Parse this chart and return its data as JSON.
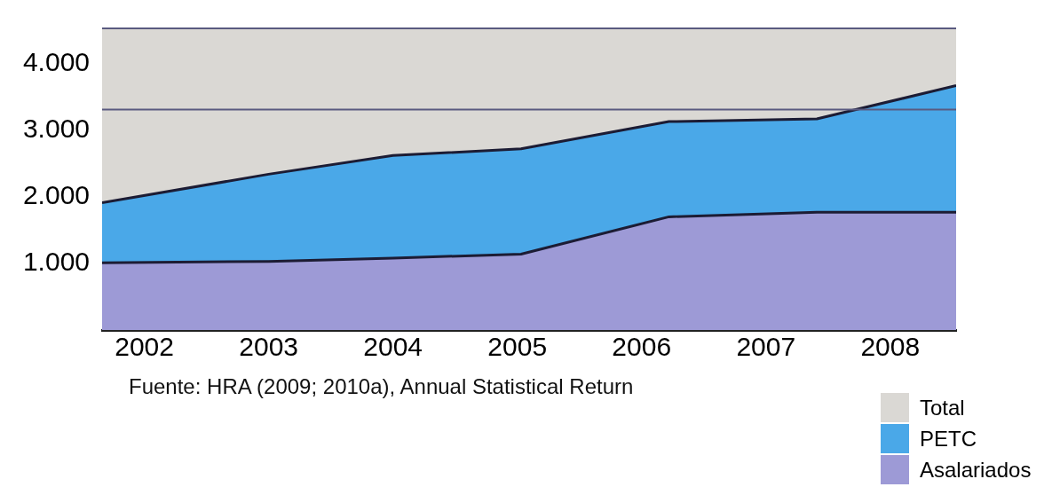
{
  "chart_data": {
    "type": "area",
    "stacked": true,
    "x": [
      2001.66,
      2003,
      2004,
      2005.03,
      2006.22,
      2007.41,
      2008.53
    ],
    "xlim": [
      2001.66,
      2008.53
    ],
    "xticks": [
      2002,
      2003,
      2004,
      2005,
      2006,
      2007,
      2008
    ],
    "ylim": [
      0,
      4530
    ],
    "yticks": [
      {
        "value": 1000,
        "label": "1.000"
      },
      {
        "value": 2000,
        "label": "2.000"
      },
      {
        "value": 3000,
        "label": "3.000"
      },
      {
        "value": 4000,
        "label": "4.000"
      }
    ],
    "series": [
      {
        "name": "Asalariados",
        "color": "#9d9ad6",
        "values": [
          1010,
          1030,
          1080,
          1140,
          1700,
          1770,
          1770
        ]
      },
      {
        "name": "PETC",
        "color": "#4aa8e8",
        "values": [
          900,
          1310,
          1540,
          1580,
          1430,
          1400,
          1900
        ]
      },
      {
        "name": "Total",
        "color": "#dad8d4",
        "values": [
          2620,
          2190,
          1910,
          1810,
          1400,
          1360,
          860
        ]
      }
    ],
    "ref_lines": [
      {
        "axis": "y",
        "value": 3310,
        "color": "#5a5a80"
      }
    ],
    "legend": "bottom right",
    "annotations": [
      "Fuente: HRA (2009; 2010a), Annual Statistical Return"
    ]
  }
}
